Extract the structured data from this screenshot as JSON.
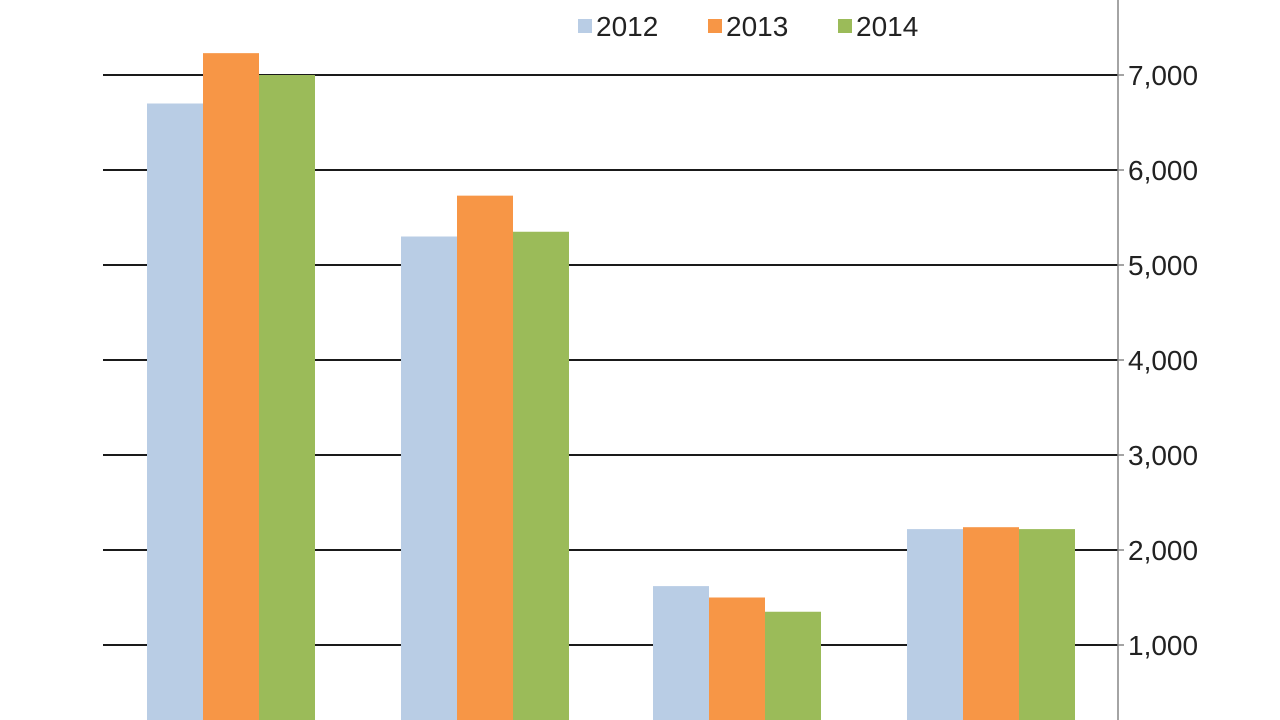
{
  "chart_data": {
    "type": "bar",
    "categories": [
      "",
      "",
      "",
      ""
    ],
    "series": [
      {
        "name": "2012",
        "values": [
          6700,
          5300,
          1620,
          2220
        ],
        "color": "#b9cde5"
      },
      {
        "name": "2013",
        "values": [
          7230,
          5730,
          1500,
          2240
        ],
        "color": "#f79646"
      },
      {
        "name": "2014",
        "values": [
          7000,
          5350,
          1350,
          2220
        ],
        "color": "#9bbb59"
      }
    ],
    "y_ticks": [
      {
        "value": 1000,
        "label": "1,000"
      },
      {
        "value": 2000,
        "label": "2,000"
      },
      {
        "value": 3000,
        "label": "3,000"
      },
      {
        "value": 4000,
        "label": "4,000"
      },
      {
        "value": 5000,
        "label": "5,000"
      },
      {
        "value": 6000,
        "label": "6,000"
      },
      {
        "value": 7000,
        "label": "7,000"
      }
    ],
    "y_axis_side": "right",
    "grid": true,
    "legend_position": "top-center",
    "title": "",
    "xlabel": "",
    "ylabel": ""
  }
}
